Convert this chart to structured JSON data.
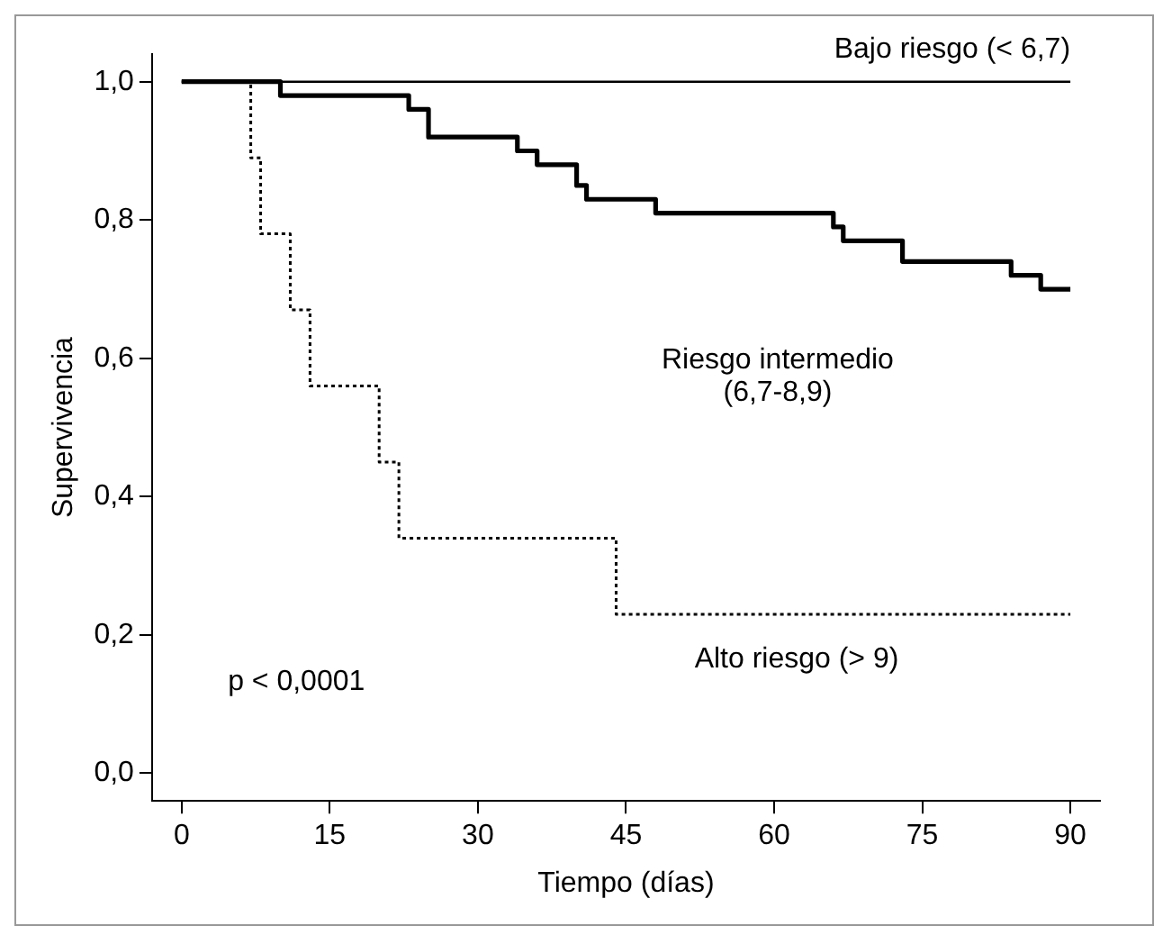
{
  "chart_data": {
    "type": "step",
    "xlabel": "Tiempo (días)",
    "ylabel": "Supervivencia",
    "xlim": [
      -3,
      93
    ],
    "ylim": [
      -0.04,
      1.04
    ],
    "xticks": [
      0,
      15,
      30,
      45,
      60,
      75,
      90
    ],
    "yticks": [
      {
        "value": 0,
        "label": "0,0"
      },
      {
        "value": 0.2,
        "label": "0,2"
      },
      {
        "value": 0.4,
        "label": "0,4"
      },
      {
        "value": 0.6,
        "label": "0,6"
      },
      {
        "value": 0.8,
        "label": "0,8"
      },
      {
        "value": 1,
        "label": "1,0"
      }
    ],
    "legend": false,
    "annotations": [
      "p < 0,0001"
    ],
    "series": [
      {
        "name": "Bajo riesgo (< 6,7)",
        "color": "#000000",
        "line_style": "solid",
        "x": [
          0,
          90
        ],
        "values": [
          1,
          1
        ]
      },
      {
        "name": "Riesgo intermedio (6,7-8,9)",
        "color": "#000000",
        "line_style": "solid",
        "x": [
          0,
          10,
          23,
          25,
          34,
          36,
          40,
          41,
          48,
          66,
          67,
          73,
          84,
          87,
          90
        ],
        "values": [
          1,
          0.98,
          0.96,
          0.92,
          0.9,
          0.88,
          0.85,
          0.83,
          0.81,
          0.79,
          0.77,
          0.74,
          0.72,
          0.7,
          0.7
        ]
      },
      {
        "name": "Alto riesgo (> 9)",
        "color": "#000000",
        "line_style": "dotted",
        "x": [
          0,
          7,
          8,
          11,
          13,
          20,
          22,
          44,
          90
        ],
        "values": [
          1,
          0.89,
          0.78,
          0.67,
          0.56,
          0.45,
          0.34,
          0.23,
          0.23
        ]
      }
    ]
  }
}
